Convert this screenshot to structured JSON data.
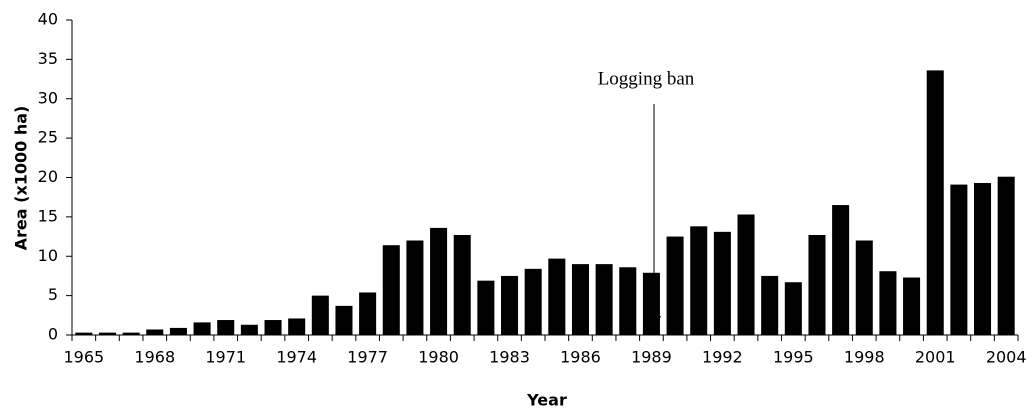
{
  "chart_data": {
    "type": "bar",
    "annotation": "Logging ban",
    "xlabel": "Year",
    "ylabel": "Area (x1000 ha)",
    "categories": [
      "1965",
      null,
      null,
      "1968",
      null,
      null,
      "1971",
      null,
      null,
      "1974",
      null,
      null,
      "1977",
      null,
      null,
      "1980",
      null,
      null,
      "1983",
      null,
      null,
      "1986",
      null,
      null,
      "1989",
      null,
      null,
      "1992",
      null,
      null,
      "1995",
      null,
      null,
      "1998",
      null,
      null,
      "2001",
      null,
      null,
      "2004"
    ],
    "values": [
      0.3,
      0.3,
      0.3,
      0.7,
      0.9,
      1.6,
      1.9,
      1.3,
      1.9,
      2.1,
      5.0,
      3.7,
      5.4,
      11.4,
      12.0,
      13.6,
      12.7,
      6.9,
      7.5,
      8.4,
      9.7,
      9.0,
      9.0,
      8.6,
      7.9,
      12.5,
      13.8,
      13.1,
      15.3,
      7.5,
      6.7,
      12.7,
      16.5,
      12.0,
      8.1,
      7.3,
      33.6,
      19.1,
      19.3,
      20.1
    ],
    "color": "#000000",
    "ylim": [
      0,
      40
    ],
    "yticks": [
      0,
      5,
      10,
      15,
      20,
      25,
      30,
      35,
      40
    ],
    "grid": false
  }
}
